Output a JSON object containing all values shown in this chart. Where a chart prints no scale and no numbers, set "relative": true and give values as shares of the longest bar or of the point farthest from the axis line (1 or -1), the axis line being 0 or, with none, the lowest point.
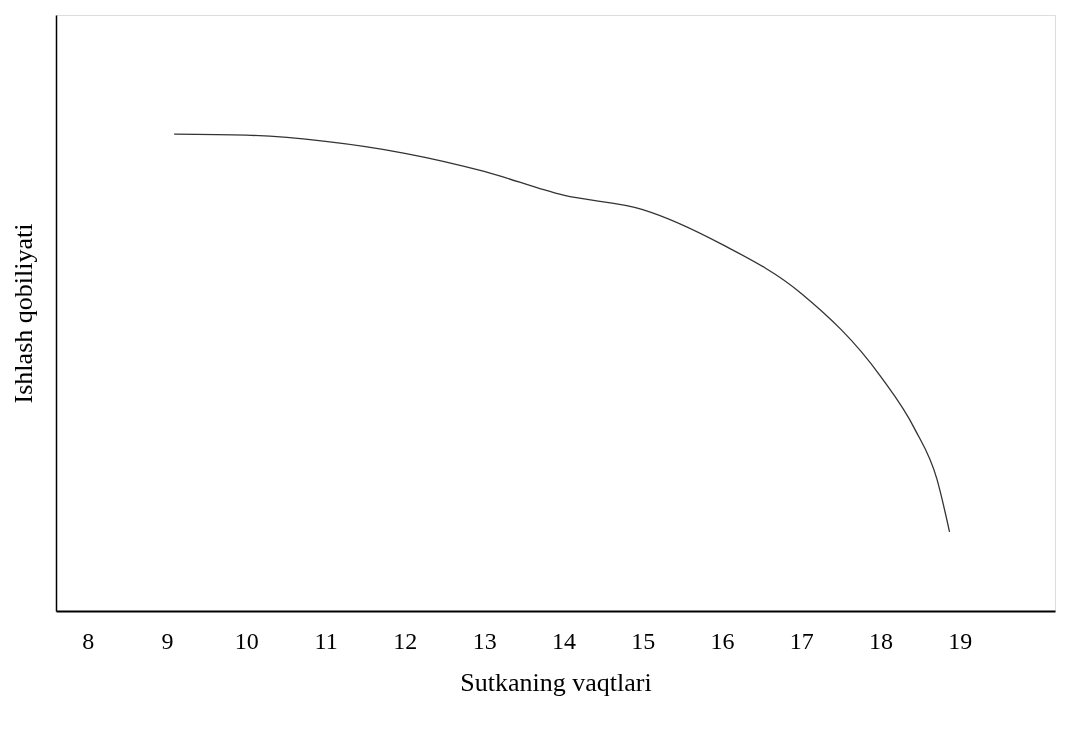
{
  "chart_data": {
    "type": "line",
    "xlabel": "Sutkaning vaqtlari",
    "ylabel": "Ishlash qobiliyati",
    "relative": true,
    "x": [
      9.09,
      10,
      11,
      12,
      13,
      14,
      15,
      16,
      17,
      18,
      18.43,
      18.71,
      18.87
    ],
    "series": [
      {
        "color": "#333333",
        "values": [
          1,
          0.998,
          0.985,
          0.96,
          0.922,
          0.872,
          0.842,
          0.769,
          0.666,
          0.492,
          0.382,
          0.277,
          0.166
        ]
      }
    ],
    "xlim": [
      7.6,
      20.2
    ],
    "xticks": [
      8,
      9,
      10,
      11,
      12,
      13,
      14,
      15,
      16,
      17,
      18,
      19
    ],
    "grid": false,
    "legend": false,
    "marker": "none",
    "line_style": "solid"
  }
}
